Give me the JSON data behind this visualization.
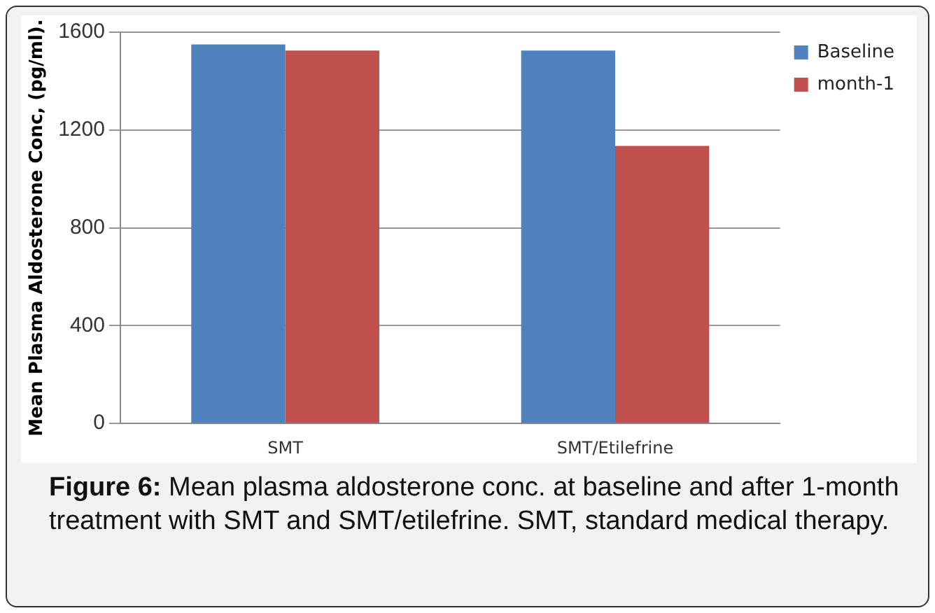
{
  "chart_data": {
    "type": "bar",
    "title": "Figure 6:",
    "ylabel": "Mean Plasma Aldosterone Conc, (pg/ml).",
    "categories": [
      "SMT",
      "SMT/Etilefrine"
    ],
    "series": [
      {
        "name": "Baseline",
        "color": "#4f81bd",
        "values": [
          1550,
          1525
        ]
      },
      {
        "name": "month-1",
        "color": "#c0504d",
        "values": [
          1525,
          1135
        ]
      }
    ],
    "ylim": [
      0,
      1600
    ],
    "yticks": [
      0,
      400,
      800,
      1200,
      1600
    ],
    "grid": "y",
    "legend": "top right",
    "annotations": [
      "Mean plasma aldosterone conc. at baseline and after 1-month treatment with SMT and SMT/etilefrine. SMT, standard medical therapy."
    ]
  }
}
